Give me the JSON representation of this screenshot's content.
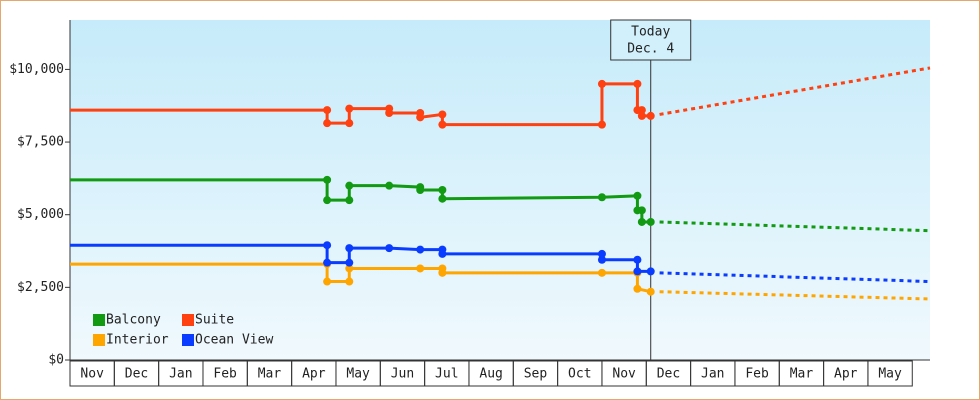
{
  "chart_data": {
    "type": "line",
    "categories": [
      "Nov",
      "Dec",
      "Jan",
      "Feb",
      "Mar",
      "Apr",
      "May",
      "Jun",
      "Jul",
      "Aug",
      "Sep",
      "Oct",
      "Nov",
      "Dec",
      "Jan",
      "Feb",
      "Mar",
      "Apr",
      "May"
    ],
    "xlim": [
      0,
      19.4
    ],
    "ylim": [
      0,
      11700
    ],
    "yticks": [
      {
        "value": 0,
        "label": "$0"
      },
      {
        "value": 2500,
        "label": "$2,500"
      },
      {
        "value": 5000,
        "label": "$5,000"
      },
      {
        "value": 7500,
        "label": "$7,500"
      },
      {
        "value": 10000,
        "label": "$10,000"
      }
    ],
    "today_x": 13.1,
    "annotations": [
      "Today",
      "Dec. 4"
    ],
    "series": [
      {
        "name": "Balcony",
        "color": "#129a12",
        "x": [
          0,
          5.8,
          5.8,
          6.3,
          6.3,
          7.2,
          7.9,
          7.9,
          8.4,
          8.4,
          12.0,
          12.8,
          12.8,
          12.9,
          12.9,
          13.1
        ],
        "values": [
          6200,
          6200,
          5500,
          5500,
          6000,
          6000,
          5950,
          5850,
          5850,
          5550,
          5600,
          5650,
          5150,
          5150,
          4750,
          4750
        ],
        "forecast_x": [
          13.3,
          19.4
        ],
        "forecast": [
          4750,
          4450
        ]
      },
      {
        "name": "Suite",
        "color": "#ff4010",
        "x": [
          0,
          5.8,
          5.8,
          6.3,
          6.3,
          7.2,
          7.2,
          7.9,
          7.9,
          8.4,
          8.4,
          12.0,
          12.0,
          12.8,
          12.8,
          12.9,
          12.9,
          13.1
        ],
        "values": [
          8600,
          8600,
          8150,
          8150,
          8650,
          8650,
          8500,
          8500,
          8350,
          8450,
          8100,
          8100,
          9500,
          9500,
          8600,
          8600,
          8400,
          8400
        ],
        "forecast_x": [
          13.3,
          19.4
        ],
        "forecast": [
          8450,
          10050
        ]
      },
      {
        "name": "Interior",
        "color": "#ffa500",
        "x": [
          0,
          5.8,
          5.8,
          6.3,
          6.3,
          7.9,
          8.4,
          8.4,
          12.0,
          12.8,
          12.8,
          13.1
        ],
        "values": [
          3300,
          3300,
          2700,
          2700,
          3150,
          3150,
          3150,
          3000,
          3000,
          3000,
          2450,
          2350
        ],
        "forecast_x": [
          13.3,
          19.4
        ],
        "forecast": [
          2350,
          2100
        ]
      },
      {
        "name": "Ocean View",
        "color": "#0a3cff",
        "x": [
          0,
          5.8,
          5.8,
          6.3,
          6.3,
          7.2,
          7.9,
          8.4,
          8.4,
          12.0,
          12.0,
          12.8,
          12.8,
          13.1
        ],
        "values": [
          3950,
          3950,
          3350,
          3350,
          3850,
          3850,
          3800,
          3800,
          3650,
          3650,
          3450,
          3450,
          3050,
          3050
        ],
        "forecast_x": [
          13.3,
          19.4
        ],
        "forecast": [
          3000,
          2700
        ]
      }
    ]
  }
}
